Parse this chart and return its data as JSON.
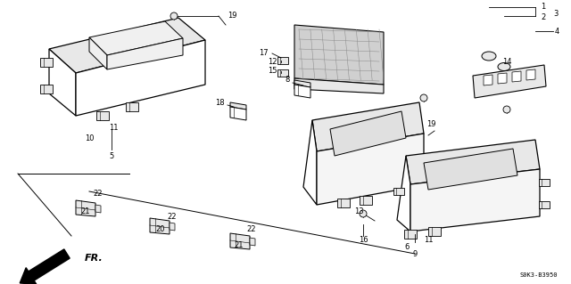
{
  "bg_color": "#ffffff",
  "diagram_code": "S0K3-B3950",
  "fr_label": "FR.",
  "lw": 0.8,
  "parts_lw": 0.7,
  "label_fs": 6.0
}
